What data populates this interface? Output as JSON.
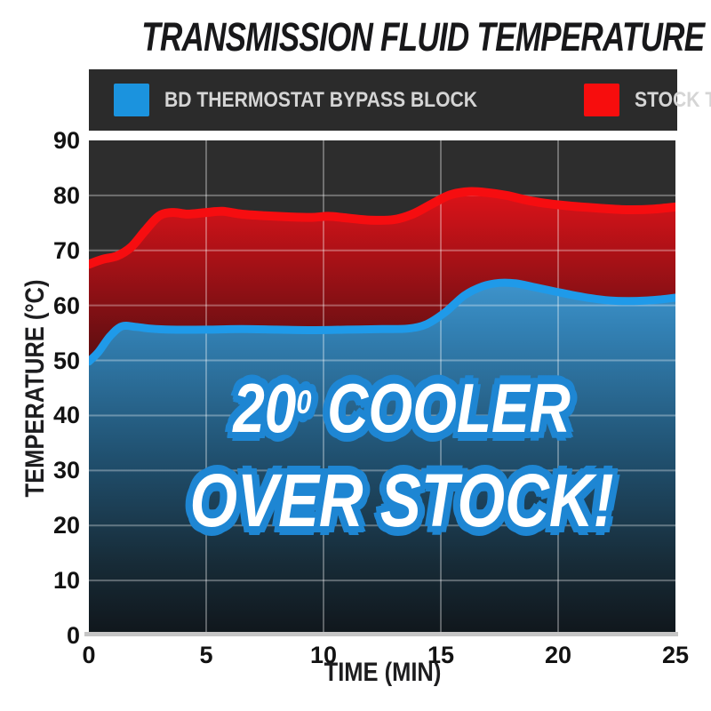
{
  "title": "TRANSMISSION FLUID TEMPERATURE",
  "legend": {
    "items": [
      {
        "label": "BD THERMOSTAT BYPASS BLOCK",
        "color": "#1b93de"
      },
      {
        "label": "STOCK THERMOSTAT",
        "color": "#f70d0d"
      }
    ]
  },
  "overlay": {
    "line1_base": "20",
    "line1_sup": "0",
    "line1_rest": " COOLER",
    "line2": "OVER STOCK!"
  },
  "axes": {
    "x_label": "TIME (MIN)",
    "y_label": "TEMPERATURE (°C)",
    "x_ticks": [
      "0",
      "5",
      "10",
      "15",
      "20",
      "25"
    ],
    "y_ticks": [
      "90",
      "80",
      "70",
      "60",
      "50",
      "40",
      "30",
      "20",
      "10",
      "0"
    ]
  },
  "chart_data": {
    "type": "area",
    "title": "TRANSMISSION FLUID TEMPERATURE",
    "xlabel": "TIME (MIN)",
    "ylabel": "TEMPERATURE (°C)",
    "xlim": [
      0,
      25
    ],
    "ylim": [
      0,
      90
    ],
    "grid": true,
    "plot_bg": "#2d2d2d",
    "grid_color": "rgba(255,255,255,0.32)",
    "annotation": "20° COOLER OVER STOCK!",
    "series": [
      {
        "name": "BD THERMOSTAT BYPASS BLOCK",
        "color": "#1f9ae9",
        "fill_stops": [
          [
            0,
            "#3f95cd"
          ],
          [
            0.13,
            "#3382b6"
          ],
          [
            0.5,
            "#20506f"
          ],
          [
            0.8,
            "#172b37"
          ],
          [
            1,
            "#10161b"
          ]
        ],
        "points": [
          [
            0,
            49.8
          ],
          [
            0.4,
            51.5
          ],
          [
            0.9,
            54.4
          ],
          [
            1.4,
            56.2
          ],
          [
            2,
            56.1
          ],
          [
            2.6,
            55.8
          ],
          [
            3.5,
            55.6
          ],
          [
            5,
            55.6
          ],
          [
            6.5,
            55.7
          ],
          [
            8,
            55.6
          ],
          [
            9.5,
            55.5
          ],
          [
            11,
            55.6
          ],
          [
            12.5,
            55.7
          ],
          [
            13.6,
            55.8
          ],
          [
            14.4,
            56.6
          ],
          [
            15.2,
            58.8
          ],
          [
            16,
            61.8
          ],
          [
            16.8,
            63.5
          ],
          [
            17.5,
            64.1
          ],
          [
            18.2,
            64.0
          ],
          [
            19,
            63.3
          ],
          [
            19.8,
            62.6
          ],
          [
            20.6,
            61.9
          ],
          [
            21.4,
            61.3
          ],
          [
            22.2,
            60.9
          ],
          [
            23,
            60.8
          ],
          [
            23.8,
            60.9
          ],
          [
            24.4,
            61.1
          ],
          [
            25,
            61.4
          ]
        ]
      },
      {
        "name": "STOCK THERMOSTAT",
        "color": "#f60d10",
        "fill_stops": [
          [
            0,
            "#df1219"
          ],
          [
            0.45,
            "#a11116"
          ],
          [
            1,
            "#570e11"
          ]
        ],
        "points": [
          [
            0,
            67.5
          ],
          [
            0.6,
            68.4
          ],
          [
            1.2,
            69.0
          ],
          [
            1.8,
            70.6
          ],
          [
            2.4,
            73.6
          ],
          [
            3,
            76.3
          ],
          [
            3.6,
            76.9
          ],
          [
            4.2,
            76.6
          ],
          [
            5,
            76.9
          ],
          [
            5.7,
            77.1
          ],
          [
            6.5,
            76.6
          ],
          [
            7.5,
            76.3
          ],
          [
            8.5,
            76.1
          ],
          [
            9.5,
            76.0
          ],
          [
            10.2,
            76.2
          ],
          [
            11,
            75.9
          ],
          [
            12,
            75.5
          ],
          [
            13,
            75.6
          ],
          [
            13.8,
            76.6
          ],
          [
            14.6,
            78.4
          ],
          [
            15.4,
            80.1
          ],
          [
            16.2,
            80.7
          ],
          [
            17,
            80.5
          ],
          [
            17.8,
            80.0
          ],
          [
            18.6,
            79.2
          ],
          [
            19.4,
            78.6
          ],
          [
            20.2,
            78.2
          ],
          [
            21,
            77.9
          ],
          [
            22,
            77.6
          ],
          [
            23,
            77.4
          ],
          [
            24,
            77.5
          ],
          [
            25,
            77.9
          ]
        ]
      }
    ]
  }
}
